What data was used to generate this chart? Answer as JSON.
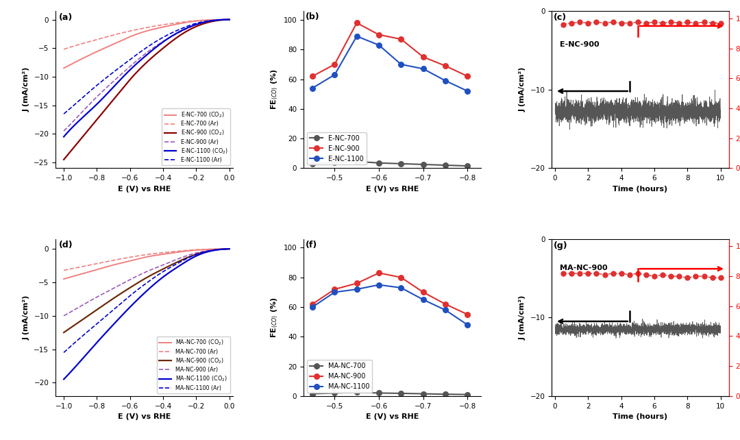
{
  "enc_cv_x": [
    -1.0,
    -0.9,
    -0.8,
    -0.7,
    -0.6,
    -0.5,
    -0.4,
    -0.3,
    -0.2,
    -0.1,
    0.0
  ],
  "enc700_co2": [
    -8.5,
    -7.0,
    -5.6,
    -4.3,
    -3.0,
    -2.0,
    -1.3,
    -0.7,
    -0.25,
    -0.06,
    0.0
  ],
  "enc700_ar": [
    -5.2,
    -4.3,
    -3.5,
    -2.7,
    -2.0,
    -1.4,
    -0.9,
    -0.5,
    -0.18,
    -0.04,
    0.0
  ],
  "enc900_co2": [
    -24.5,
    -21.0,
    -17.5,
    -14.0,
    -10.5,
    -7.5,
    -5.0,
    -2.8,
    -1.2,
    -0.3,
    0.0
  ],
  "enc900_ar": [
    -19.5,
    -16.5,
    -13.5,
    -10.8,
    -8.2,
    -5.8,
    -3.8,
    -2.2,
    -0.9,
    -0.2,
    0.0
  ],
  "enc1100_co2": [
    -20.5,
    -17.5,
    -14.8,
    -11.8,
    -8.8,
    -6.2,
    -3.9,
    -2.1,
    -0.85,
    -0.18,
    0.0
  ],
  "enc1100_ar": [
    -16.5,
    -14.0,
    -11.5,
    -9.2,
    -7.0,
    -4.9,
    -3.1,
    -1.7,
    -0.65,
    -0.13,
    0.0
  ],
  "manc_cv_x": [
    -1.0,
    -0.9,
    -0.8,
    -0.7,
    -0.6,
    -0.5,
    -0.4,
    -0.3,
    -0.2,
    -0.1,
    0.0
  ],
  "manc700_co2": [
    -4.5,
    -3.8,
    -3.1,
    -2.4,
    -1.8,
    -1.2,
    -0.8,
    -0.45,
    -0.18,
    -0.05,
    0.0
  ],
  "manc700_ar": [
    -3.2,
    -2.7,
    -2.2,
    -1.7,
    -1.25,
    -0.85,
    -0.56,
    -0.32,
    -0.12,
    -0.03,
    0.0
  ],
  "manc900_co2": [
    -12.5,
    -10.8,
    -9.1,
    -7.4,
    -5.8,
    -4.3,
    -3.0,
    -1.8,
    -0.8,
    -0.2,
    0.0
  ],
  "manc900_ar": [
    -10.0,
    -8.6,
    -7.2,
    -5.9,
    -4.6,
    -3.4,
    -2.4,
    -1.4,
    -0.6,
    -0.15,
    0.0
  ],
  "manc1100_co2": [
    -19.5,
    -16.8,
    -14.0,
    -11.3,
    -8.7,
    -6.3,
    -4.2,
    -2.5,
    -1.05,
    -0.25,
    0.0
  ],
  "manc1100_ar": [
    -15.5,
    -13.3,
    -11.2,
    -9.1,
    -7.0,
    -5.1,
    -3.4,
    -2.0,
    -0.82,
    -0.2,
    0.0
  ],
  "fe_x": [
    -0.45,
    -0.5,
    -0.55,
    -0.6,
    -0.65,
    -0.7,
    -0.75,
    -0.8
  ],
  "enc700_fe": [
    3.0,
    4.0,
    4.5,
    3.5,
    3.0,
    2.5,
    2.0,
    1.5
  ],
  "enc900_fe": [
    62.0,
    70.0,
    98.0,
    90.0,
    87.0,
    75.0,
    69.0,
    62.0
  ],
  "enc1100_fe": [
    54.0,
    63.0,
    89.0,
    83.0,
    70.0,
    67.0,
    59.0,
    52.0
  ],
  "fe_x_manc": [
    -0.45,
    -0.5,
    -0.55,
    -0.6,
    -0.65,
    -0.7,
    -0.75,
    -0.8
  ],
  "manc700_fe": [
    1.5,
    2.0,
    2.5,
    2.0,
    1.8,
    1.5,
    1.2,
    1.0
  ],
  "manc900_fe": [
    62.0,
    72.0,
    76.0,
    83.0,
    80.0,
    70.0,
    62.0,
    55.0
  ],
  "manc1100_fe": [
    60.0,
    70.0,
    72.0,
    75.0,
    73.0,
    65.0,
    58.0,
    48.0
  ],
  "enc_color_700": "#f08080",
  "enc_color_900": "#8b0000",
  "enc_color_900_ar": "#9b59b6",
  "enc_color_1100": "#0000cd",
  "manc_color_700": "#f08080",
  "manc_color_900": "#6b2a0a",
  "manc_color_900_ar": "#9b59b6",
  "manc_color_1100": "#0000cd",
  "fe_color_700": "#555555",
  "fe_color_900": "#e03030",
  "fe_color_1100": "#2050c0",
  "stability_time_c": [
    0.5,
    1.0,
    1.5,
    2.0,
    2.5,
    3.0,
    3.5,
    4.0,
    4.5,
    5.0,
    5.5,
    6.0,
    6.5,
    7.0,
    7.5,
    8.0,
    8.5,
    9.0,
    9.5,
    10.0
  ],
  "enc_fe_stability": [
    96,
    97,
    97.5,
    97,
    97.5,
    97,
    97.5,
    97,
    97,
    97.5,
    97,
    97.5,
    97,
    97.5,
    97,
    97.5,
    97,
    97.5,
    97,
    97
  ],
  "manc_fe_stability": [
    82,
    82,
    82,
    82,
    82,
    81,
    82,
    82,
    81,
    82,
    81,
    80,
    81,
    80,
    80,
    79,
    80,
    80,
    79,
    79
  ],
  "enc_j_mean": -12.8,
  "enc_j_noise": 0.7,
  "manc_j_mean": -11.5,
  "manc_j_noise": 0.35
}
